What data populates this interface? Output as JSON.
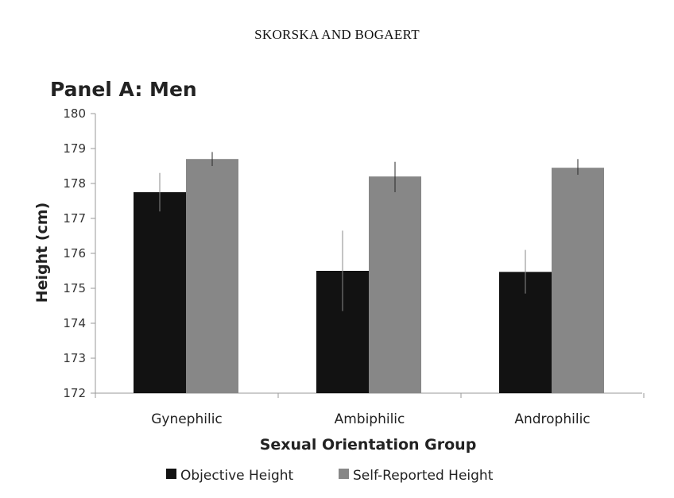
{
  "running_head": "SKORSKA AND BOGAERT",
  "chart_data": {
    "type": "bar",
    "title": "Panel A: Men",
    "xlabel": "Sexual Orientation Group",
    "ylabel": "Height (cm)",
    "ylim": [
      172,
      180
    ],
    "yticks": [
      172,
      173,
      174,
      175,
      176,
      177,
      178,
      179,
      180
    ],
    "categories": [
      "Gynephilic",
      "Ambiphilic",
      "Androphilic"
    ],
    "legend_position": "bottom",
    "grid": false,
    "series": [
      {
        "name": "Objective Height",
        "color": "#121212",
        "values": [
          177.75,
          175.5,
          175.47
        ],
        "error_low": [
          177.2,
          174.35,
          174.85
        ],
        "error_high": [
          178.3,
          176.65,
          176.1
        ]
      },
      {
        "name": "Self-Reported Height",
        "color": "#878787",
        "values": [
          178.7,
          178.2,
          178.45
        ],
        "error_low": [
          178.5,
          177.75,
          178.25
        ],
        "error_high": [
          178.9,
          178.62,
          178.7
        ]
      }
    ]
  }
}
